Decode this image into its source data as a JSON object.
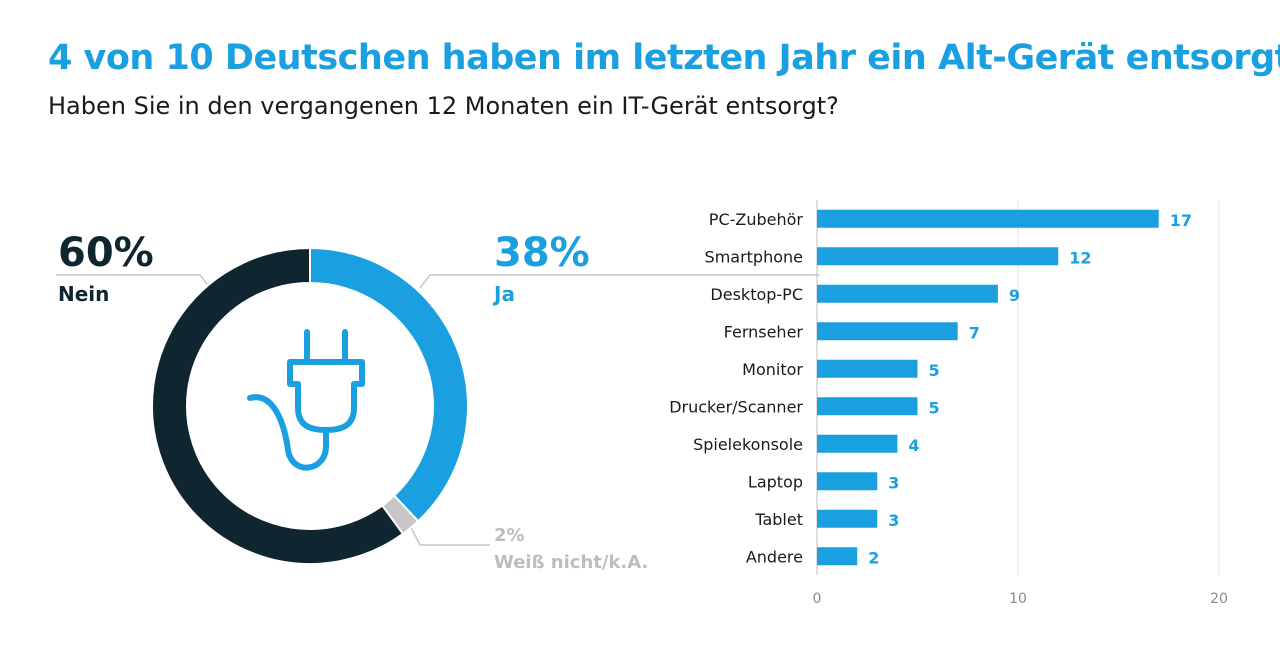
{
  "chart_data": [
    {
      "type": "pie",
      "title": "4 von 10 Deutschen haben im letzten Jahr ein Alt-Gerät entsorgt",
      "subtitle": "Haben Sie in den vergangenen 12 Monaten ein IT-Gerät entsorgt?",
      "slices": [
        {
          "label": "Ja",
          "value": 38,
          "display": "38%",
          "color": "#1aa0e0"
        },
        {
          "label": "Weiß nicht/k.A.",
          "value": 2,
          "display": "2%",
          "color": "#c6c6c6"
        },
        {
          "label": "Nein",
          "value": 60,
          "display": "60%",
          "color": "#0f2530"
        }
      ],
      "center_icon": "power-plug-icon"
    },
    {
      "type": "bar",
      "orientation": "horizontal",
      "categories": [
        "PC-Zubehör",
        "Smartphone",
        "Desktop-PC",
        "Fernseher",
        "Monitor",
        "Drucker/Scanner",
        "Spielekonsole",
        "Laptop",
        "Tablet",
        "Andere"
      ],
      "values": [
        17,
        12,
        9,
        7,
        5,
        5,
        4,
        3,
        3,
        2
      ],
      "xlim": [
        0,
        20
      ],
      "xticks": [
        "0",
        "10",
        "20"
      ],
      "grid": true,
      "color": "#1aa0e0"
    }
  ]
}
